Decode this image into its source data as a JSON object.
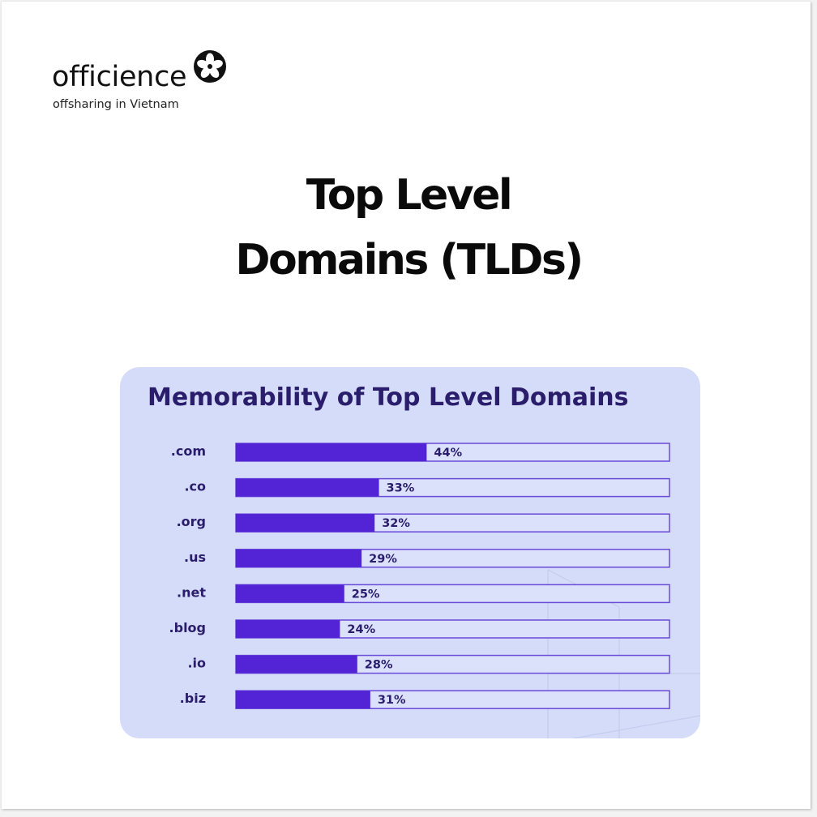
{
  "logo": {
    "wordmark": "officience",
    "tagline": "offsharing in Vietnam"
  },
  "headline": {
    "line1": "Top Level",
    "line2": "Domains (TLDs)"
  },
  "colors": {
    "card_background": "#d5dcf9",
    "bar_fill": "#5224d6",
    "bar_outline": "#6a4ad8",
    "text_dark": "#2a1d6b"
  },
  "chart_data": {
    "type": "bar",
    "orientation": "horizontal",
    "title": "Memorability of Top Level Domains",
    "categories": [
      ".com",
      ".co",
      ".org",
      ".us",
      ".net",
      ".blog",
      ".io",
      ".biz"
    ],
    "values": [
      44,
      33,
      32,
      29,
      25,
      24,
      28,
      31
    ],
    "data_labels": [
      "44%",
      "33%",
      "32%",
      "29%",
      "25%",
      "24%",
      "28%",
      "31%"
    ],
    "unit": "%",
    "xlim": [
      0,
      100
    ],
    "grid": false,
    "legend": "none"
  }
}
